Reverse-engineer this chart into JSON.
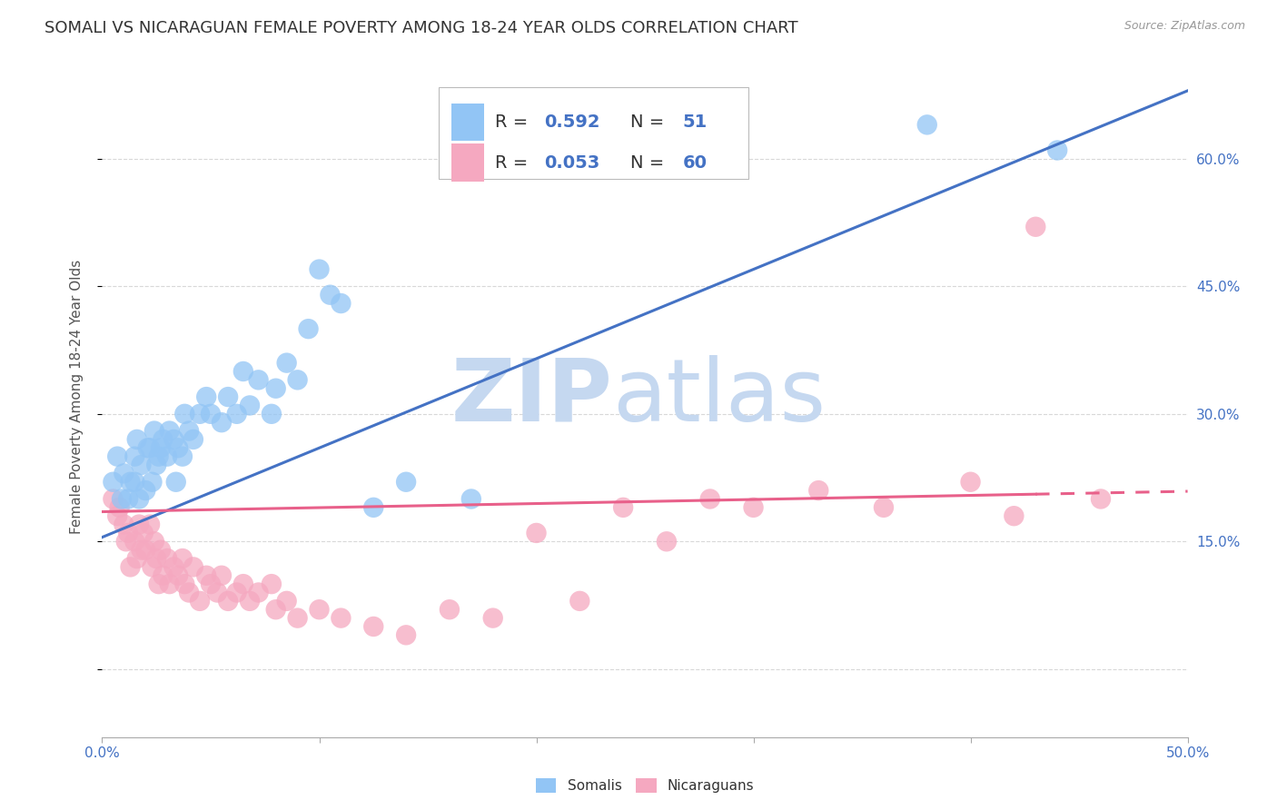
{
  "title": "SOMALI VS NICARAGUAN FEMALE POVERTY AMONG 18-24 YEAR OLDS CORRELATION CHART",
  "source": "Source: ZipAtlas.com",
  "ylabel": "Female Poverty Among 18-24 Year Olds",
  "yticks": [
    0.0,
    0.15,
    0.3,
    0.45,
    0.6
  ],
  "ytick_labels": [
    "",
    "15.0%",
    "30.0%",
    "45.0%",
    "60.0%"
  ],
  "xlim": [
    0.0,
    0.5
  ],
  "ylim": [
    -0.08,
    0.72
  ],
  "somali_R": 0.592,
  "somali_N": 51,
  "nicaraguan_R": 0.053,
  "nicaraguan_N": 60,
  "somali_color": "#92C5F5",
  "nicaraguan_color": "#F5A8C0",
  "somali_line_color": "#4472C4",
  "nicaraguan_line_color": "#E8608A",
  "watermark_zip_color": "#C5D8F0",
  "watermark_atlas_color": "#C5D8F0",
  "grid_color": "#D8D8D8",
  "grid_style": "--",
  "background_color": "#FFFFFF",
  "title_fontsize": 13,
  "axis_label_fontsize": 11,
  "tick_fontsize": 11,
  "legend_fontsize": 14,
  "somali_intercept": 0.155,
  "somali_slope": 1.05,
  "nicaraguan_intercept": 0.185,
  "nicaraguan_slope": 0.048,
  "somali_x": [
    0.005,
    0.007,
    0.009,
    0.01,
    0.012,
    0.013,
    0.015,
    0.015,
    0.016,
    0.017,
    0.018,
    0.02,
    0.021,
    0.022,
    0.023,
    0.024,
    0.025,
    0.026,
    0.027,
    0.028,
    0.03,
    0.031,
    0.033,
    0.034,
    0.035,
    0.037,
    0.038,
    0.04,
    0.042,
    0.045,
    0.048,
    0.05,
    0.055,
    0.058,
    0.062,
    0.065,
    0.068,
    0.072,
    0.078,
    0.08,
    0.085,
    0.09,
    0.095,
    0.1,
    0.105,
    0.11,
    0.125,
    0.14,
    0.17,
    0.38,
    0.44
  ],
  "somali_y": [
    0.22,
    0.25,
    0.2,
    0.23,
    0.2,
    0.22,
    0.22,
    0.25,
    0.27,
    0.2,
    0.24,
    0.21,
    0.26,
    0.26,
    0.22,
    0.28,
    0.24,
    0.25,
    0.26,
    0.27,
    0.25,
    0.28,
    0.27,
    0.22,
    0.26,
    0.25,
    0.3,
    0.28,
    0.27,
    0.3,
    0.32,
    0.3,
    0.29,
    0.32,
    0.3,
    0.35,
    0.31,
    0.34,
    0.3,
    0.33,
    0.36,
    0.34,
    0.4,
    0.47,
    0.44,
    0.43,
    0.19,
    0.22,
    0.2,
    0.64,
    0.61
  ],
  "nicaraguan_x": [
    0.005,
    0.007,
    0.008,
    0.01,
    0.011,
    0.012,
    0.013,
    0.015,
    0.016,
    0.017,
    0.018,
    0.019,
    0.02,
    0.022,
    0.023,
    0.024,
    0.025,
    0.026,
    0.027,
    0.028,
    0.03,
    0.031,
    0.033,
    0.035,
    0.037,
    0.038,
    0.04,
    0.042,
    0.045,
    0.048,
    0.05,
    0.053,
    0.055,
    0.058,
    0.062,
    0.065,
    0.068,
    0.072,
    0.078,
    0.08,
    0.085,
    0.09,
    0.1,
    0.11,
    0.125,
    0.14,
    0.16,
    0.18,
    0.2,
    0.22,
    0.24,
    0.26,
    0.28,
    0.3,
    0.33,
    0.36,
    0.4,
    0.42,
    0.43,
    0.46
  ],
  "nicaraguan_y": [
    0.2,
    0.18,
    0.19,
    0.17,
    0.15,
    0.16,
    0.12,
    0.15,
    0.13,
    0.17,
    0.14,
    0.16,
    0.14,
    0.17,
    0.12,
    0.15,
    0.13,
    0.1,
    0.14,
    0.11,
    0.13,
    0.1,
    0.12,
    0.11,
    0.13,
    0.1,
    0.09,
    0.12,
    0.08,
    0.11,
    0.1,
    0.09,
    0.11,
    0.08,
    0.09,
    0.1,
    0.08,
    0.09,
    0.1,
    0.07,
    0.08,
    0.06,
    0.07,
    0.06,
    0.05,
    0.04,
    0.07,
    0.06,
    0.16,
    0.08,
    0.19,
    0.15,
    0.2,
    0.19,
    0.21,
    0.19,
    0.22,
    0.18,
    0.52,
    0.2
  ]
}
